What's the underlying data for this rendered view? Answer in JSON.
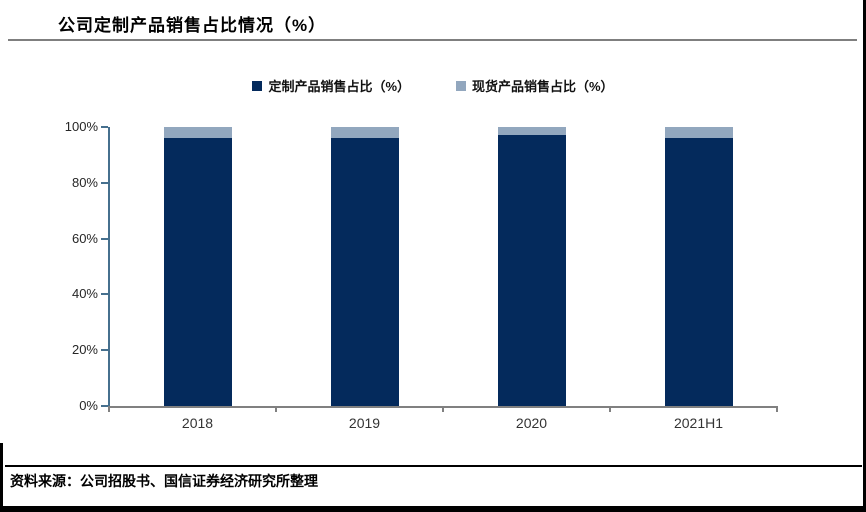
{
  "header": {
    "title": "公司定制产品销售占比情况（%）"
  },
  "footer": {
    "source": "资料来源：公司招股书、国信证券经济研究所整理"
  },
  "chart_data": {
    "type": "bar",
    "stacked": true,
    "title": "公司定制产品销售占比情况（%）",
    "categories": [
      "2018",
      "2019",
      "2020",
      "2021H1"
    ],
    "series": [
      {
        "name": "定制产品销售占比（%）",
        "color": "#042a5c",
        "values": [
          96,
          96,
          97,
          96
        ]
      },
      {
        "name": "现货产品销售占比（%）",
        "color": "#92a7be",
        "values": [
          4,
          4,
          3,
          4
        ]
      }
    ],
    "ylim": [
      0,
      100
    ],
    "yticks": [
      "0%",
      "20%",
      "40%",
      "60%",
      "80%",
      "100%"
    ],
    "grid": false,
    "legend_position": "top",
    "colors": {
      "y_axis": "#46708e",
      "x_axis": "#808080",
      "title_rule": "#7f7f7f"
    }
  }
}
